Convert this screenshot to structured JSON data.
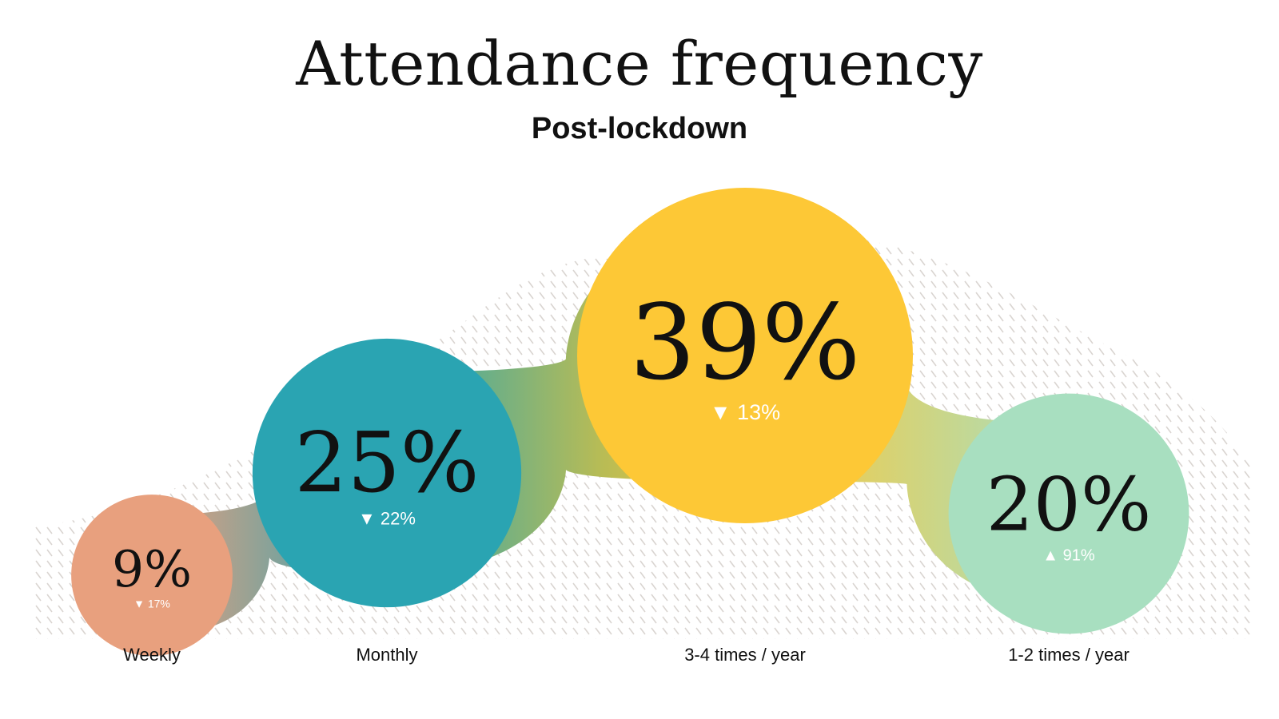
{
  "chart_data": {
    "type": "bubble",
    "title": "Attendance frequency",
    "subtitle": "Post-lockdown",
    "categories": [
      "Weekly",
      "Monthly",
      "3-4 times / year",
      "1-2 times / year"
    ],
    "values": [
      9,
      25,
      39,
      20
    ],
    "value_labels": [
      "9%",
      "25%",
      "39%",
      "20%"
    ],
    "changes": [
      {
        "direction": "down",
        "label": "17%"
      },
      {
        "direction": "down",
        "label": "22%"
      },
      {
        "direction": "down",
        "label": "13%"
      },
      {
        "direction": "up",
        "label": "91%"
      }
    ],
    "colors": [
      "#E8A07E",
      "#2AA4B2",
      "#FDC836",
      "#A8DFC0"
    ]
  }
}
